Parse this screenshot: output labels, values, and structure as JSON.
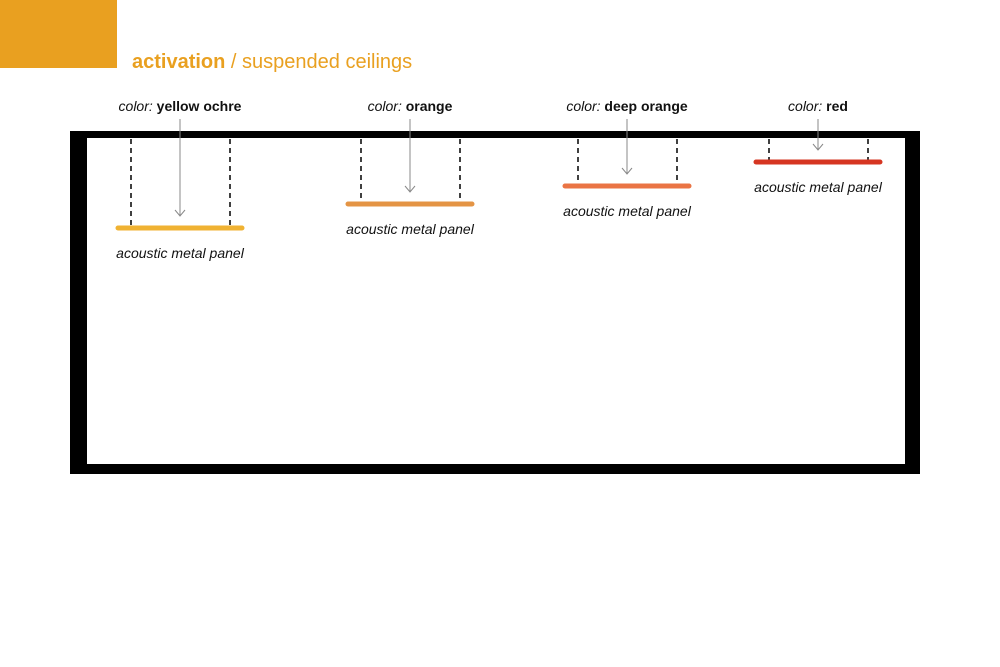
{
  "header": {
    "title_bold": "activation",
    "title_rest": "/ suspended ceilings"
  },
  "panels": [
    {
      "color_prefix": "color:",
      "color_name": "yellow ochre",
      "label": "acoustic metal panel"
    },
    {
      "color_prefix": "color:",
      "color_name": "orange",
      "label": "acoustic metal panel"
    },
    {
      "color_prefix": "color:",
      "color_name": "deep orange",
      "label": "acoustic metal panel"
    },
    {
      "color_prefix": "color:",
      "color_name": "red",
      "label": "acoustic metal panel"
    }
  ]
}
